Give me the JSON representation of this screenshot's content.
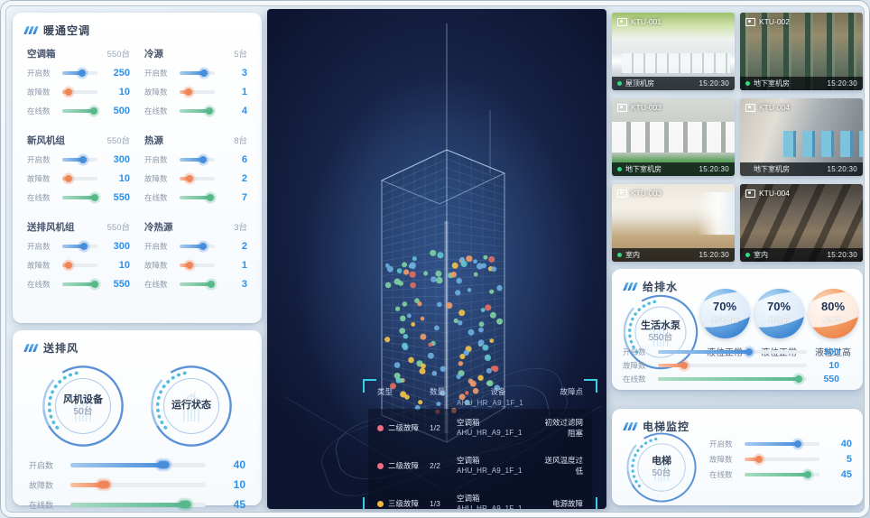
{
  "hvac": {
    "title": "暖通空调",
    "groups": [
      {
        "name": "空调箱",
        "count": "550台",
        "stats": [
          {
            "label": "开启数",
            "value": "250",
            "pct": 58
          },
          {
            "label": "故障数",
            "value": "10",
            "pct": 20
          },
          {
            "label": "在线数",
            "value": "500",
            "pct": 92
          }
        ]
      },
      {
        "name": "冷源",
        "count": "5台",
        "stats": [
          {
            "label": "开启数",
            "value": "3",
            "pct": 72
          },
          {
            "label": "故障数",
            "value": "1",
            "pct": 28
          },
          {
            "label": "在线数",
            "value": "4",
            "pct": 88
          }
        ]
      },
      {
        "name": "新风机组",
        "count": "550台",
        "stats": [
          {
            "label": "开启数",
            "value": "300",
            "pct": 62
          },
          {
            "label": "故障数",
            "value": "10",
            "pct": 20
          },
          {
            "label": "在线数",
            "value": "550",
            "pct": 94
          }
        ]
      },
      {
        "name": "热源",
        "count": "8台",
        "stats": [
          {
            "label": "开启数",
            "value": "6",
            "pct": 70
          },
          {
            "label": "故障数",
            "value": "2",
            "pct": 30
          },
          {
            "label": "在线数",
            "value": "7",
            "pct": 90
          }
        ]
      },
      {
        "name": "送排风机组",
        "count": "550台",
        "stats": [
          {
            "label": "开启数",
            "value": "300",
            "pct": 64
          },
          {
            "label": "故障数",
            "value": "10",
            "pct": 20
          },
          {
            "label": "在线数",
            "value": "550",
            "pct": 94
          }
        ]
      },
      {
        "name": "冷热源",
        "count": "3台",
        "stats": [
          {
            "label": "开启数",
            "value": "2",
            "pct": 68
          },
          {
            "label": "故障数",
            "value": "1",
            "pct": 30
          },
          {
            "label": "在线数",
            "value": "3",
            "pct": 92
          }
        ]
      }
    ]
  },
  "fan": {
    "title": "送排风",
    "gauges": [
      {
        "line1": "风机设备",
        "line2": "50台"
      },
      {
        "line1": "运行状态",
        "line2": ""
      }
    ],
    "stats": [
      {
        "label": "开启数",
        "value": "40",
        "pct": 70
      },
      {
        "label": "故障数",
        "value": "10",
        "pct": 26
      },
      {
        "label": "在线数",
        "value": "45",
        "pct": 86
      }
    ]
  },
  "building": {
    "fault_table": {
      "headers": [
        "类型",
        "数量",
        "设备",
        "故障点"
      ],
      "clipped_row_text": "AHU_HR_A9_1F_1",
      "rows": [
        {
          "level": "red",
          "type": "二级故障",
          "qty": "1/2",
          "device": "空调箱",
          "device_id": "AHU_HR_A9_1F_1",
          "fault": "初效过滤网阻塞"
        },
        {
          "level": "red",
          "type": "二级故障",
          "qty": "2/2",
          "device": "空调箱",
          "device_id": "AHU_HR_A9_1F_1",
          "fault": "送风温度过低"
        },
        {
          "level": "yellow",
          "type": "三级故障",
          "qty": "1/3",
          "device": "空调箱",
          "device_id": "AHU_HR_A9_1F_1",
          "fault": "电源故障"
        }
      ]
    }
  },
  "cameras": [
    {
      "id": "KTU-001",
      "location": "屋顶机房",
      "time": "15:20:30",
      "online": true
    },
    {
      "id": "KTU-002",
      "location": "地下室机房",
      "time": "15:20:30",
      "online": true
    },
    {
      "id": "KTU-003",
      "location": "地下室机房",
      "time": "15:20:30",
      "online": true
    },
    {
      "id": "KTU-004",
      "location": "地下室机房",
      "time": "15:20:30",
      "online": false
    },
    {
      "id": "KTU-003",
      "location": "室内",
      "time": "15:20:30",
      "online": true
    },
    {
      "id": "KTU-004",
      "location": "室内",
      "time": "15:20:30",
      "online": true
    }
  ],
  "water": {
    "title": "给排水",
    "gauge": {
      "line1": "生活水泵",
      "line2": "550台"
    },
    "tanks": [
      {
        "percent": "70%",
        "name": "生活水箱",
        "status": "液位正常",
        "color": "blue"
      },
      {
        "percent": "70%",
        "name": "补水箱",
        "status": "液位正常",
        "color": "blue"
      },
      {
        "percent": "80%",
        "name": "集水坑",
        "status": "液位过高",
        "color": "orange"
      }
    ],
    "stats": [
      {
        "label": "开启数",
        "value": "300",
        "pct": 62
      },
      {
        "label": "故障数",
        "value": "10",
        "pct": 18
      },
      {
        "label": "在线数",
        "value": "550",
        "pct": 95
      }
    ]
  },
  "elevator": {
    "title": "电梯监控",
    "gauge": {
      "line1": "电梯",
      "line2": "50台"
    },
    "stats": [
      {
        "label": "开启数",
        "value": "40",
        "pct": 72
      },
      {
        "label": "故障数",
        "value": "5",
        "pct": 20
      },
      {
        "label": "在线数",
        "value": "45",
        "pct": 86
      }
    ]
  },
  "colors": {
    "accent_blue": "#2e8fe8",
    "bar_blue": "#478dda",
    "bar_orange": "#ef8659",
    "bar_green": "#56b88b",
    "alert_red": "#ec6e80",
    "alert_yellow": "#f0b73c",
    "bracket_cyan": "#38d0e2",
    "online_green": "#37d886"
  }
}
